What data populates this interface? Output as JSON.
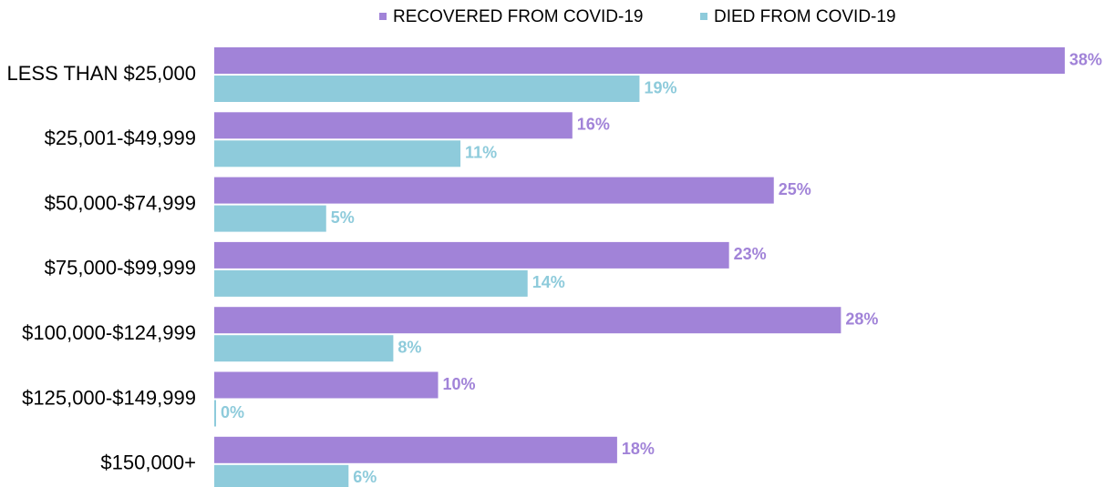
{
  "chart_data": {
    "type": "bar",
    "orientation": "horizontal",
    "categories": [
      "LESS THAN $25,000",
      "$25,001-$49,999",
      "$50,000-$74,999",
      "$75,000-$99,999",
      "$100,000-$124,999",
      "$125,000-$149,999",
      "$150,000+"
    ],
    "series": [
      {
        "name": "RECOVERED FROM COVID-19",
        "color": "#a183d8",
        "values": [
          38,
          16,
          25,
          23,
          28,
          10,
          18
        ],
        "value_labels": [
          "38%",
          "16%",
          "25%",
          "23%",
          "28%",
          "10%",
          "18%"
        ]
      },
      {
        "name": "DIED FROM COVID-19",
        "color": "#8ecbdb",
        "values": [
          19,
          11,
          5,
          14,
          8,
          0,
          6
        ],
        "value_labels": [
          "19%",
          "11%",
          "5%",
          "14%",
          "8%",
          "0%",
          "6%"
        ]
      }
    ],
    "legend": "top"
  }
}
